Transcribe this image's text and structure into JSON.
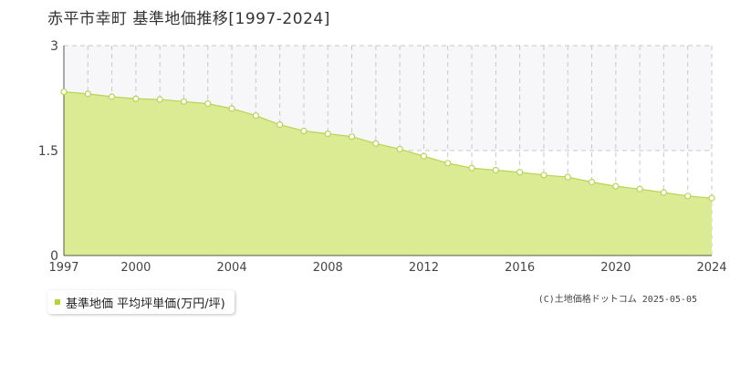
{
  "page": {
    "title": "赤平市幸町 基準地価推移[1997-2024]",
    "credit": "(C)土地価格ドットコム 2025-05-05"
  },
  "colors": {
    "fill": "#dbeb94",
    "line": "#b8d455",
    "marker_fill": "#ffffff",
    "marker_stroke": "#b8d455",
    "grid": "#c8c8c8",
    "axis": "#555555",
    "upper_band": "#f7f7f9",
    "legend_swatch": "#b5d334"
  },
  "chart_data": {
    "type": "area",
    "x": [
      1997,
      1998,
      1999,
      2000,
      2001,
      2002,
      2003,
      2004,
      2005,
      2006,
      2007,
      2008,
      2009,
      2010,
      2011,
      2012,
      2013,
      2014,
      2015,
      2016,
      2017,
      2018,
      2019,
      2020,
      2021,
      2022,
      2023,
      2024
    ],
    "series": [
      {
        "name": "基準地価 平均坪単価(万円/坪)",
        "values": [
          2.34,
          2.31,
          2.27,
          2.24,
          2.23,
          2.2,
          2.17,
          2.1,
          2.0,
          1.87,
          1.78,
          1.74,
          1.7,
          1.6,
          1.52,
          1.42,
          1.32,
          1.25,
          1.22,
          1.19,
          1.15,
          1.12,
          1.05,
          0.99,
          0.95,
          0.9,
          0.85,
          0.82
        ]
      }
    ],
    "ylim": [
      0,
      3
    ],
    "xlim": [
      1997,
      2024
    ],
    "y_ticks": [
      {
        "value": 0,
        "label": "0"
      },
      {
        "value": 1.5,
        "label": "1.5"
      },
      {
        "value": 3,
        "label": "3"
      }
    ],
    "x_ticks": [
      {
        "value": 1997,
        "label": "1997"
      },
      {
        "value": 2000,
        "label": "2000"
      },
      {
        "value": 2004,
        "label": "2004"
      },
      {
        "value": 2008,
        "label": "2008"
      },
      {
        "value": 2012,
        "label": "2012"
      },
      {
        "value": 2016,
        "label": "2016"
      },
      {
        "value": 2020,
        "label": "2020"
      },
      {
        "value": 2024,
        "label": "2024"
      }
    ],
    "grid": true,
    "legend": "bottom-left"
  }
}
